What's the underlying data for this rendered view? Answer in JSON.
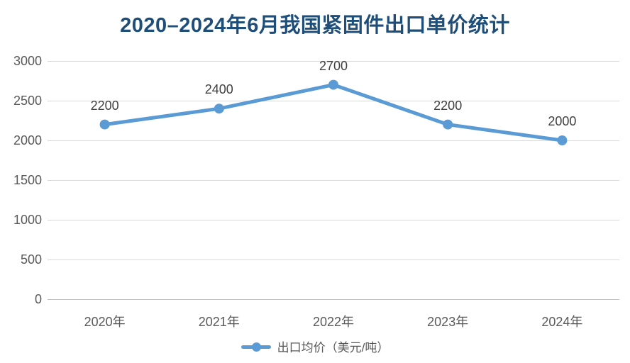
{
  "chart_data": {
    "type": "line",
    "title": "2020–2024年6月我国紧固件出口单价统计",
    "categories": [
      "2020年",
      "2021年",
      "2022年",
      "2023年",
      "2024年"
    ],
    "series": [
      {
        "name": "出口均价（美元/吨）",
        "values": [
          2200,
          2400,
          2700,
          2200,
          2000
        ]
      }
    ],
    "data_labels": [
      "2200",
      "2400",
      "2700",
      "2200",
      "2000"
    ],
    "yticks": [
      "0",
      "500",
      "1000",
      "1500",
      "2000",
      "2500",
      "3000"
    ],
    "ylim": [
      0,
      3000
    ],
    "xlabel": "",
    "ylabel": "",
    "grid": true,
    "legend_position": "bottom-center",
    "colors": {
      "line": "#5B9BD5",
      "marker": "#5B9BD5",
      "title": "#1F4E79",
      "axis_label": "#595959",
      "data_label": "#404040",
      "gridline": "#D9D9D9",
      "axis_line": "#BFBFBF",
      "background": "#FFFFFF"
    }
  }
}
